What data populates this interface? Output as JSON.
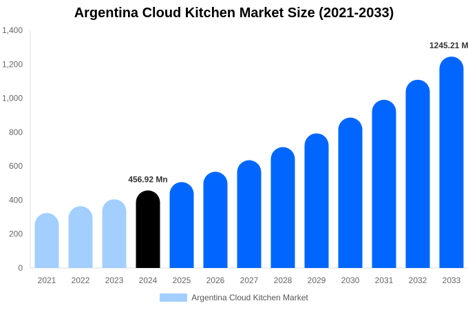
{
  "chart_data": {
    "type": "bar",
    "title": "Argentina Cloud Kitchen Market Size (2021-2033)",
    "categories": [
      "2021",
      "2022",
      "2023",
      "2024",
      "2025",
      "2026",
      "2027",
      "2028",
      "2029",
      "2030",
      "2031",
      "2032",
      "2033"
    ],
    "series": [
      {
        "name": "Argentina Cloud Kitchen Market",
        "values": [
          324,
          364,
          405,
          456.92,
          506,
          567,
          635,
          712,
          793,
          886,
          991,
          1109,
          1245.21
        ]
      }
    ],
    "data_labels": [
      {
        "category": "2024",
        "text": "456.92 Mn"
      },
      {
        "category": "2033",
        "text": "1245.21 Mn"
      }
    ],
    "ylim": [
      0,
      1400
    ],
    "yticks": [
      0,
      200,
      400,
      600,
      800,
      1000,
      1200,
      1400
    ],
    "ytick_labels": [
      "0",
      "200",
      "400",
      "600",
      "800",
      "1,000",
      "1,200",
      "1,400"
    ],
    "grid": false,
    "legend_position": "bottom",
    "colors": {
      "historical": "#a3cfff",
      "base_year": "#000000",
      "forecast": "#0066ff"
    }
  }
}
